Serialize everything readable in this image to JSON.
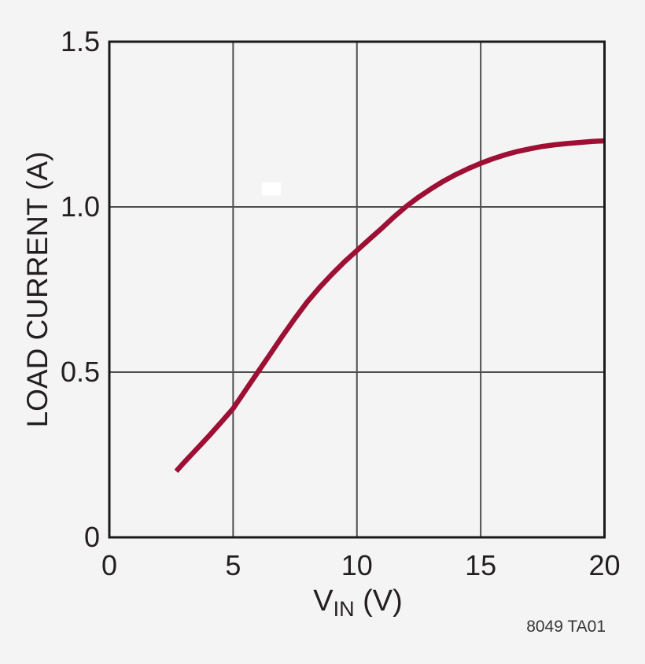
{
  "colors": {
    "background": "#f5f4f5",
    "frame": "#1a1a1a",
    "grid": "#4e4e50",
    "text": "#231f20",
    "curve": "#9e0f34",
    "patch": "#ffffff"
  },
  "chart_data": {
    "type": "line",
    "title": "",
    "ylabel": "LOAD CURRENT (A)",
    "xlabel": {
      "pre": "V",
      "sub": "IN",
      "post": " (V)"
    },
    "xlim": [
      0,
      20
    ],
    "ylim": [
      0,
      1.5
    ],
    "grid": true,
    "legend": "none",
    "x_tick_values": [
      0,
      5,
      10,
      15,
      20
    ],
    "x_tick_labels": [
      "0",
      "5",
      "10",
      "15",
      "20"
    ],
    "y_tick_values": [
      0,
      0.5,
      1.0,
      1.5
    ],
    "y_tick_labels": [
      "0",
      "0.5",
      "1.0",
      "1.5"
    ],
    "x_gridlines": [
      5,
      10,
      15
    ],
    "y_gridlines": [
      0.5,
      1.0
    ],
    "annotation": "8049 TA01",
    "white_patch": {
      "x0": 6.16,
      "x1": 6.93,
      "y0": 1.035,
      "y1": 1.075
    },
    "series": [
      {
        "name": "load current vs input voltage",
        "color": "#9e0f34",
        "x": [
          2.7,
          3,
          3.5,
          4,
          4.5,
          5,
          5.5,
          6,
          6.5,
          7,
          7.5,
          8,
          8.5,
          9,
          9.5,
          10,
          10.5,
          11,
          11.5,
          12,
          12.5,
          13,
          13.5,
          14,
          14.5,
          15,
          15.5,
          16,
          16.5,
          17,
          17.5,
          18,
          18.5,
          19,
          19.5,
          20
        ],
        "y": [
          0.2,
          0.225,
          0.265,
          0.305,
          0.347,
          0.39,
          0.445,
          0.5,
          0.555,
          0.61,
          0.663,
          0.713,
          0.757,
          0.797,
          0.834,
          0.868,
          0.902,
          0.935,
          0.97,
          1.002,
          1.03,
          1.055,
          1.078,
          1.098,
          1.116,
          1.132,
          1.146,
          1.158,
          1.168,
          1.176,
          1.183,
          1.188,
          1.192,
          1.195,
          1.198,
          1.2
        ]
      }
    ]
  }
}
